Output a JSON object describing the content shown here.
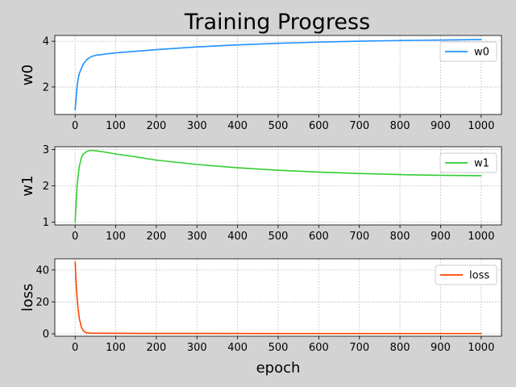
{
  "chart_data": {
    "type": "line",
    "title": "Training Progress",
    "xlabel": "epoch",
    "grid": true,
    "x_ticks": [
      "0",
      "100",
      "200",
      "300",
      "400",
      "500",
      "600",
      "700",
      "800",
      "900",
      "1000"
    ],
    "subplots": [
      {
        "ylabel": "w0",
        "legend": "w0",
        "legend_position": "top-right",
        "color": "#1e90ff",
        "xlim": [
          -50,
          1050
        ],
        "ylim": [
          0.8,
          4.25
        ],
        "y_ticks": [
          "2",
          "4"
        ],
        "x": [
          0,
          5,
          10,
          20,
          30,
          40,
          50,
          75,
          100,
          150,
          200,
          300,
          400,
          500,
          600,
          700,
          800,
          900,
          1000
        ],
        "y": [
          1.0,
          2.08,
          2.58,
          3.0,
          3.22,
          3.33,
          3.38,
          3.44,
          3.49,
          3.56,
          3.63,
          3.75,
          3.84,
          3.91,
          3.96,
          4.0,
          4.03,
          4.05,
          4.07
        ]
      },
      {
        "ylabel": "w1",
        "legend": "w1",
        "legend_position": "top-right",
        "color": "#32cd32",
        "xlim": [
          -50,
          1050
        ],
        "ylim": [
          0.92,
          3.08
        ],
        "y_ticks": [
          "1",
          "2",
          "3"
        ],
        "x": [
          0,
          5,
          10,
          15,
          20,
          30,
          40,
          50,
          75,
          100,
          150,
          200,
          300,
          400,
          500,
          600,
          700,
          800,
          900,
          1000
        ],
        "y": [
          1.0,
          2.05,
          2.52,
          2.76,
          2.88,
          2.96,
          2.98,
          2.97,
          2.93,
          2.88,
          2.8,
          2.71,
          2.59,
          2.5,
          2.43,
          2.38,
          2.34,
          2.31,
          2.29,
          2.28
        ]
      },
      {
        "ylabel": "loss",
        "legend": "loss",
        "legend_position": "top-right",
        "color": "#ff4500",
        "xlim": [
          -50,
          1050
        ],
        "ylim": [
          -1.5,
          47
        ],
        "y_ticks": [
          "0",
          "20",
          "40"
        ],
        "x": [
          0,
          3,
          6,
          10,
          15,
          20,
          25,
          30,
          40,
          60,
          100,
          200,
          500,
          1000
        ],
        "y": [
          45,
          29,
          19,
          10,
          4.5,
          2.0,
          1.0,
          0.6,
          0.4,
          0.35,
          0.3,
          0.25,
          0.2,
          0.2
        ]
      }
    ]
  }
}
